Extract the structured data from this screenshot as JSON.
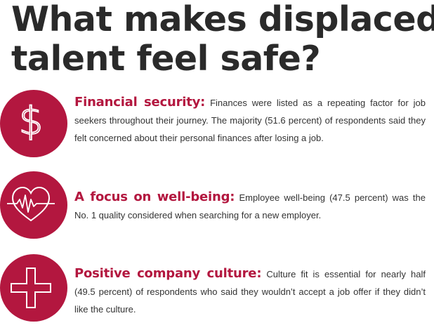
{
  "title_line1": "What makes displaced",
  "title_line2": "talent feel safe?",
  "accent_color": "#b3173f",
  "items": [
    {
      "icon": "dollar-icon",
      "heading": "Financial security:",
      "body": " Finances were listed as a repeating factor for job seekers throughout their journey. The majority (51.6 percent) of respondents said they felt concerned about their personal finances after losing a job."
    },
    {
      "icon": "heart-pulse-icon",
      "heading": "A focus on well-being:",
      "body": " Employee well-being (47.5 percent) was the No. 1 quality considered when searching for a new employer."
    },
    {
      "icon": "plus-icon",
      "heading": "Positive company culture:",
      "body": " Culture fit is essential for nearly half (49.5 percent) of respondents who said they wouldn’t accept a job offer if they didn’t like the culture."
    }
  ]
}
